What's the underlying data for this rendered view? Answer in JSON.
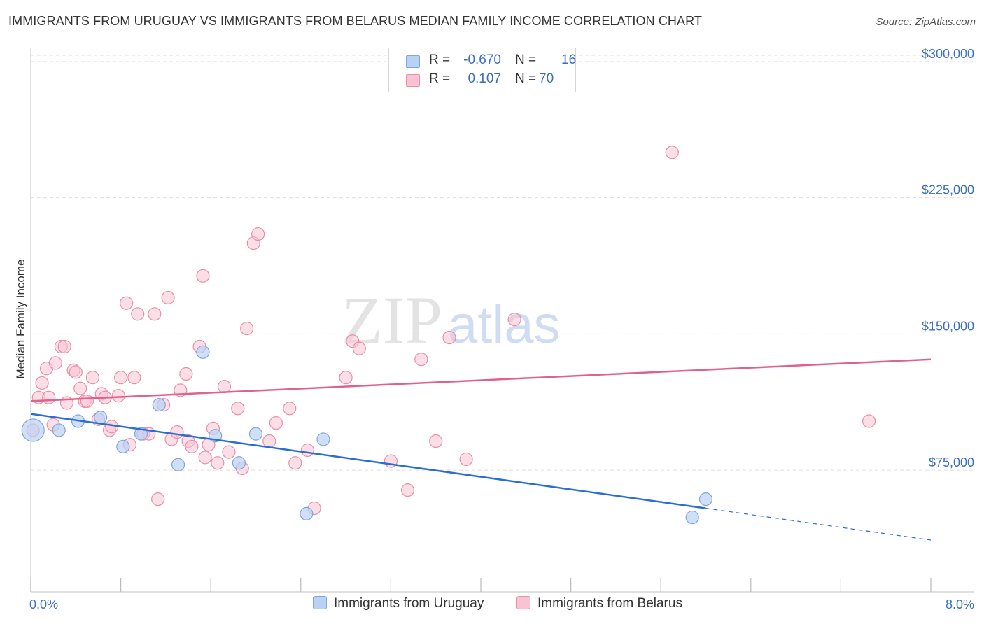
{
  "title": "IMMIGRANTS FROM URUGUAY VS IMMIGRANTS FROM BELARUS MEDIAN FAMILY INCOME CORRELATION CHART",
  "source": "Source: ZipAtlas.com",
  "watermark": {
    "zip": "ZIP",
    "atlas": "atlas"
  },
  "colors": {
    "uruguay_fill": "#b9d1f3",
    "uruguay_stroke": "#7ea6dd",
    "uruguay_line": "#2a6dd4",
    "belarus_fill": "#f9c3d3",
    "belarus_stroke": "#e88ea9",
    "belarus_line": "#e0628c",
    "tick_label": "#3a6fbf",
    "grid": "#dddddd"
  },
  "legend": {
    "uruguay": {
      "r_label": "R =",
      "r_value": "-0.670",
      "n_label": "N =",
      "n_value": "16",
      "name": "Immigrants from Uruguay"
    },
    "belarus": {
      "r_label": "R =",
      "r_value": "0.107",
      "n_label": "N =",
      "n_value": "70",
      "name": "Immigrants from Belarus"
    }
  },
  "chart_data": {
    "type": "scatter",
    "xlabel": "",
    "ylabel": "Median Family Income",
    "xlim": [
      0,
      8.0
    ],
    "ylim": [
      8000,
      310000
    ],
    "x_tick_labels": [
      "0.0%",
      "8.0%"
    ],
    "y_ticks": [
      75000,
      150000,
      225000,
      300000
    ],
    "y_tick_labels": [
      "$75,000",
      "$150,000",
      "$225,000",
      "$300,000"
    ],
    "grid": "horizontal dashed",
    "legend_position": "top-center and bottom",
    "series": [
      {
        "name": "Immigrants from Uruguay",
        "points": [
          [
            0.02,
            97000
          ],
          [
            0.25,
            97000
          ],
          [
            0.42,
            102000
          ],
          [
            0.62,
            104000
          ],
          [
            0.82,
            88000
          ],
          [
            0.98,
            95000
          ],
          [
            1.14,
            111000
          ],
          [
            1.31,
            78000
          ],
          [
            1.53,
            140000
          ],
          [
            1.64,
            94000
          ],
          [
            1.85,
            79000
          ],
          [
            2.0,
            95000
          ],
          [
            2.45,
            51000
          ],
          [
            2.6,
            92000
          ],
          [
            5.88,
            49000
          ],
          [
            6.0,
            59000
          ]
        ],
        "trend": {
          "x0": 0.0,
          "y0": 106000,
          "x1": 6.0,
          "y1": 54000,
          "dash_x1": 8.0,
          "dash_y1": 36500
        }
      },
      {
        "name": "Immigrants from Belarus",
        "points": [
          [
            0.02,
            97000
          ],
          [
            0.07,
            115000
          ],
          [
            0.1,
            123000
          ],
          [
            0.14,
            131000
          ],
          [
            0.2,
            100000
          ],
          [
            0.22,
            134000
          ],
          [
            0.27,
            143000
          ],
          [
            0.3,
            143000
          ],
          [
            0.32,
            112000
          ],
          [
            0.38,
            130000
          ],
          [
            0.4,
            129000
          ],
          [
            0.44,
            120000
          ],
          [
            0.48,
            113000
          ],
          [
            0.5,
            113000
          ],
          [
            0.55,
            126000
          ],
          [
            0.6,
            103000
          ],
          [
            0.63,
            117000
          ],
          [
            0.66,
            115000
          ],
          [
            0.7,
            97000
          ],
          [
            0.72,
            99000
          ],
          [
            0.78,
            116000
          ],
          [
            0.8,
            126000
          ],
          [
            0.85,
            167000
          ],
          [
            0.88,
            89000
          ],
          [
            0.92,
            126000
          ],
          [
            0.95,
            161000
          ],
          [
            1.0,
            95000
          ],
          [
            1.05,
            95000
          ],
          [
            1.1,
            161000
          ],
          [
            1.13,
            59000
          ],
          [
            1.18,
            111000
          ],
          [
            1.22,
            170000
          ],
          [
            1.25,
            92000
          ],
          [
            1.3,
            96000
          ],
          [
            1.33,
            119000
          ],
          [
            1.38,
            128000
          ],
          [
            1.4,
            91000
          ],
          [
            1.43,
            88000
          ],
          [
            1.5,
            143000
          ],
          [
            1.53,
            182000
          ],
          [
            1.55,
            82000
          ],
          [
            1.58,
            89000
          ],
          [
            1.62,
            98000
          ],
          [
            1.66,
            79000
          ],
          [
            1.72,
            121000
          ],
          [
            1.76,
            85000
          ],
          [
            1.84,
            109000
          ],
          [
            1.88,
            76000
          ],
          [
            1.92,
            153000
          ],
          [
            1.98,
            200000
          ],
          [
            2.02,
            205000
          ],
          [
            2.12,
            91000
          ],
          [
            2.18,
            101000
          ],
          [
            2.3,
            109000
          ],
          [
            2.35,
            79000
          ],
          [
            2.46,
            86000
          ],
          [
            2.52,
            54000
          ],
          [
            2.8,
            126000
          ],
          [
            2.86,
            146000
          ],
          [
            2.92,
            142000
          ],
          [
            3.2,
            80000
          ],
          [
            3.35,
            64000
          ],
          [
            3.47,
            136000
          ],
          [
            3.6,
            91000
          ],
          [
            3.72,
            148000
          ],
          [
            3.87,
            81000
          ],
          [
            4.3,
            158000
          ],
          [
            5.7,
            250000
          ],
          [
            7.45,
            102000
          ],
          [
            0.16,
            115000
          ]
        ],
        "trend": {
          "x0": 0.0,
          "y0": 113000,
          "x1": 8.0,
          "y1": 136000
        }
      }
    ]
  }
}
